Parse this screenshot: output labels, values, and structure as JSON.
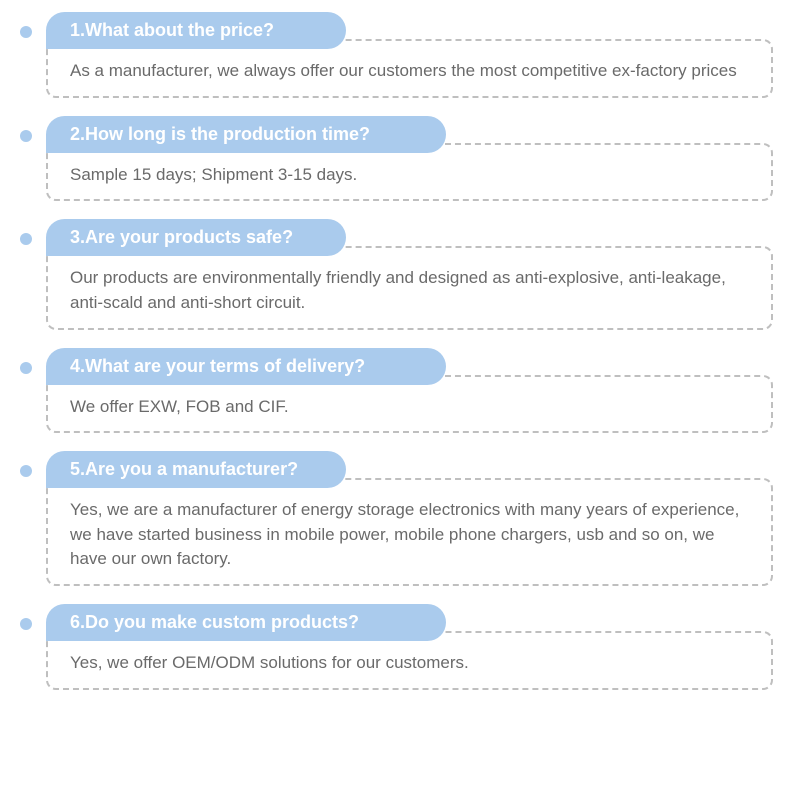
{
  "colors": {
    "pill_bg": "#aacbed",
    "pill_text": "#ffffff",
    "bullet": "#aacbed",
    "border": "#bfbfbf",
    "answer_text": "#6a6a6a",
    "background": "#ffffff"
  },
  "typography": {
    "question_fontsize": 18,
    "question_weight": "bold",
    "answer_fontsize": 17
  },
  "faq": [
    {
      "q": "1.What about the price?",
      "a": "As a manufacturer, we always offer our customers the most competitive ex-factory prices",
      "pill_wide": false
    },
    {
      "q": "2.How long is the production time?",
      "a": "Sample 15 days;   Shipment 3-15 days.",
      "pill_wide": true
    },
    {
      "q": "3.Are your products safe?",
      "a": "Our products are environmentally friendly and designed as anti-explosive, anti-leakage, anti-scald and anti-short circuit.",
      "pill_wide": false
    },
    {
      "q": "4.What are your terms of delivery?",
      "a": "We offer EXW, FOB and CIF.",
      "pill_wide": true
    },
    {
      "q": "5.Are you a manufacturer?",
      "a": "Yes, we are a manufacturer of energy storage electronics with many years of experience, we have started business in mobile power, mobile phone chargers, usb and so on, we have our own factory.",
      "pill_wide": false
    },
    {
      "q": "6.Do you make custom products?",
      "a": "Yes, we offer OEM/ODM solutions for our customers.",
      "pill_wide": true
    }
  ]
}
